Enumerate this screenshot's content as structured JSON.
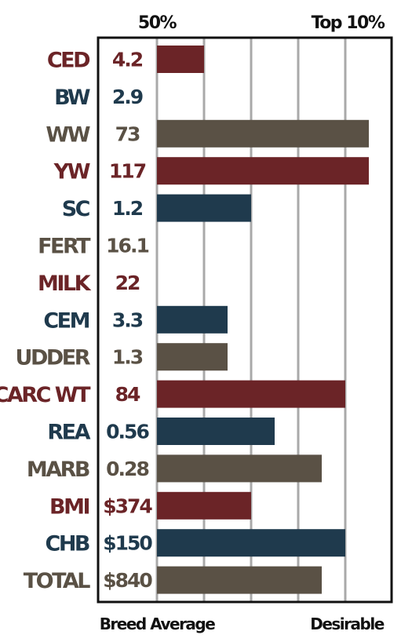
{
  "colors": {
    "red": "#6b2427",
    "blue": "#1f3a4d",
    "brown": "#5a5145",
    "grid": "#a9a9a9",
    "frame": "#111111"
  },
  "chart_data": {
    "type": "bar",
    "orientation": "horizontal",
    "scale": {
      "min": 0,
      "max": 100
    },
    "header_labels": {
      "left": "50%",
      "right": "Top 10%"
    },
    "footer_labels": {
      "left": "Breed Average",
      "right": "Desirable"
    },
    "grid": true,
    "categories": [
      "CED",
      "BW",
      "WW",
      "YW",
      "SC",
      "FERT",
      "MILK",
      "CEM",
      "UDDER",
      "CARC WT",
      "REA",
      "MARB",
      "BMI",
      "CHB",
      "TOTAL"
    ],
    "values_text": [
      "4.2",
      "2.9",
      "73",
      "117",
      "1.2",
      "16.1",
      "22",
      "3.3",
      "1.3",
      "84",
      "0.56",
      "0.28",
      "$374",
      "$150",
      "$840"
    ],
    "bar_levels": [
      20,
      0,
      90,
      90,
      40,
      0,
      0,
      30,
      30,
      80,
      50,
      70,
      40,
      80,
      70
    ],
    "row_colors": [
      "red",
      "blue",
      "brown",
      "red",
      "blue",
      "brown",
      "red",
      "blue",
      "brown",
      "red",
      "blue",
      "brown",
      "red",
      "blue",
      "brown"
    ]
  }
}
